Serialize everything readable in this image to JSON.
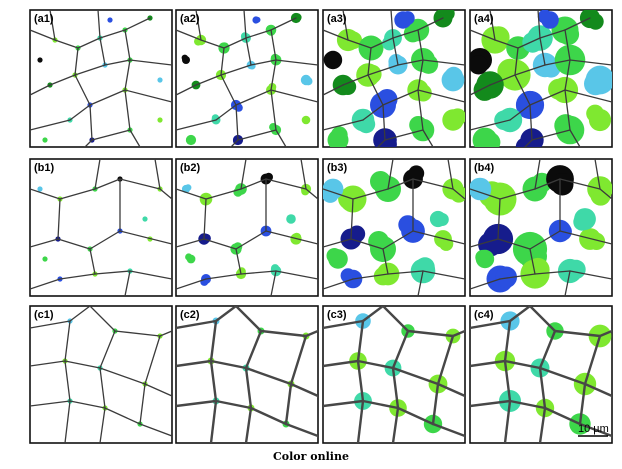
{
  "figure": {
    "caption": "Color online",
    "scale_bar_label": "10 µm",
    "rows": [
      {
        "row": "a",
        "panels": [
          "(a1)",
          "(a2)",
          "(a3)",
          "(a4)"
        ]
      },
      {
        "row": "b",
        "panels": [
          "(b1)",
          "(b2)",
          "(b3)",
          "(b4)"
        ]
      },
      {
        "row": "c",
        "panels": [
          "(c1)",
          "(c2)",
          "(c3)",
          "(c4)"
        ]
      }
    ],
    "palette": {
      "light_green": "#7fe830",
      "green": "#3dd64a",
      "dark_green": "#138a1c",
      "teal": "#3fd9a8",
      "cyan": "#59c6e8",
      "blue": "#2a4fe0",
      "dark_blue": "#161c8c",
      "black": "#0b0b0b",
      "grain_boundary": "#3b3b3b"
    }
  }
}
